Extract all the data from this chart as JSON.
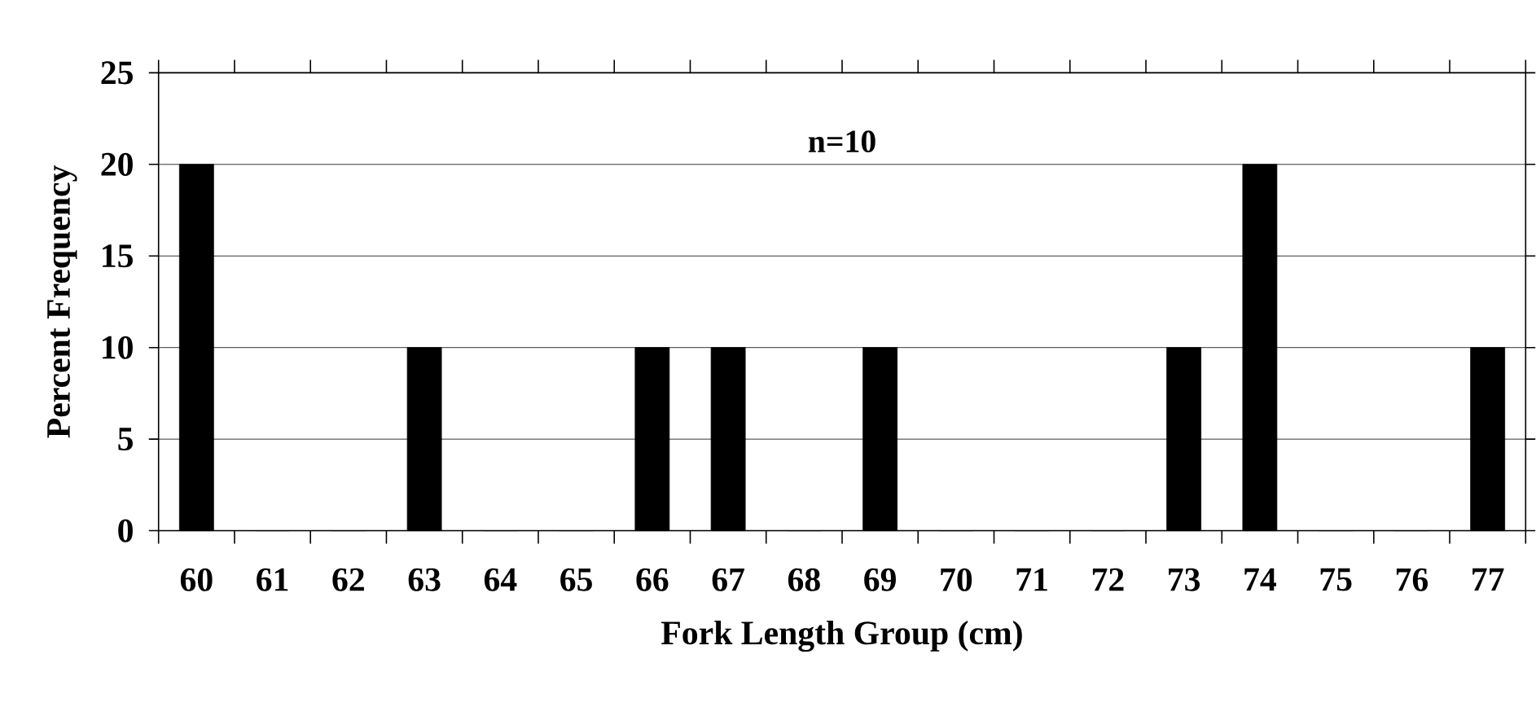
{
  "chart_data": {
    "type": "bar",
    "xlabel": "Fork Length Group (cm)",
    "ylabel": "Percent Frequency",
    "categories": [
      "60",
      "61",
      "62",
      "63",
      "64",
      "65",
      "66",
      "67",
      "68",
      "69",
      "70",
      "71",
      "72",
      "73",
      "74",
      "75",
      "76",
      "77"
    ],
    "values": [
      20,
      0,
      0,
      10,
      0,
      0,
      10,
      10,
      0,
      10,
      0,
      0,
      0,
      10,
      20,
      0,
      0,
      10
    ],
    "color": "#000000",
    "ylim": [
      0,
      25
    ],
    "yticks": [
      0,
      5,
      10,
      15,
      20,
      25
    ],
    "grid": "y",
    "annotations": [
      "n=10"
    ]
  }
}
